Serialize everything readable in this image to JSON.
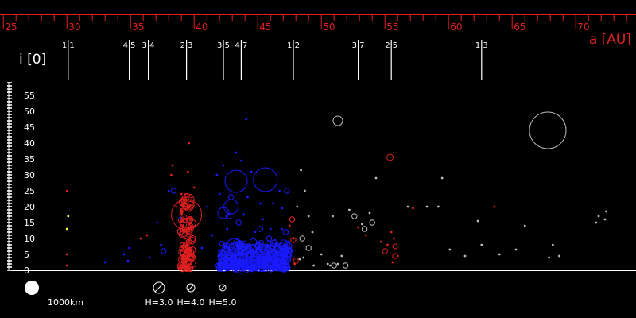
{
  "chart_data": {
    "type": "scatter",
    "xlabel": "a [AU]",
    "ylabel": "i [0]",
    "xlim": [
      24.8,
      74.8
    ],
    "ylim": [
      0,
      60
    ],
    "x_ticks": [
      25,
      30,
      35,
      40,
      45,
      50,
      55,
      60,
      65,
      70
    ],
    "y_ticks": [
      0,
      5,
      10,
      15,
      20,
      25,
      30,
      35,
      40,
      45,
      50,
      55
    ],
    "grid": false,
    "colors": {
      "background": "#000000",
      "x_axis": "#e02020",
      "resonant": "#e02020",
      "classical": "#1a1aff",
      "scattered": "#bbbbbb",
      "minor": "#ffff44",
      "axis_white": "#ffffff"
    },
    "resonances": [
      {
        "a": 30.1,
        "label": "1 1",
        "line": true
      },
      {
        "a": 34.9,
        "label": "4 5",
        "line": true
      },
      {
        "a": 36.4,
        "label": "3 4",
        "line": true
      },
      {
        "a": 39.4,
        "label": "2 3",
        "line": true
      },
      {
        "a": 42.3,
        "label": "3 5",
        "line": true
      },
      {
        "a": 43.7,
        "label": "4 7",
        "line": true
      },
      {
        "a": 47.8,
        "label": "1 2",
        "line": true
      },
      {
        "a": 52.9,
        "label": "3 7",
        "line": true
      },
      {
        "a": 55.5,
        "label": "2 5",
        "line": true
      },
      {
        "a": 62.6,
        "label": "1 3",
        "line": true
      }
    ],
    "legend": {
      "scale_label": "1000km",
      "h_labels": [
        "H=3.0",
        "H=4.0",
        "H=5.0"
      ]
    },
    "series": [
      {
        "type": "big_circles",
        "points": [
          {
            "a": 39.4,
            "i": 17.5,
            "r": 19,
            "c": "resonant"
          },
          {
            "a": 39.5,
            "i": 22.0,
            "r": 8,
            "c": "resonant"
          },
          {
            "a": 43.3,
            "i": 28.0,
            "r": 14,
            "c": "classical"
          },
          {
            "a": 45.6,
            "i": 28.5,
            "r": 15,
            "c": "classical"
          },
          {
            "a": 42.9,
            "i": 20.0,
            "r": 9,
            "c": "classical"
          },
          {
            "a": 42.3,
            "i": 18.0,
            "r": 7,
            "c": "classical"
          },
          {
            "a": 43.1,
            "i": 8.0,
            "r": 8,
            "c": "classical"
          },
          {
            "a": 43.8,
            "i": 2.0,
            "r": 12,
            "c": "classical"
          },
          {
            "a": 45.7,
            "i": 3.5,
            "r": 10,
            "c": "classical"
          },
          {
            "a": 44.9,
            "i": 4.5,
            "r": 8,
            "c": "classical"
          },
          {
            "a": 42.7,
            "i": 4.0,
            "r": 7,
            "c": "classical"
          },
          {
            "a": 67.8,
            "i": 44.0,
            "r": 23,
            "c": "scattered"
          },
          {
            "a": 51.3,
            "i": 47.0,
            "r": 6,
            "c": "scattered"
          },
          {
            "a": 55.4,
            "i": 35.5,
            "r": 4,
            "c": "resonant"
          },
          {
            "a": 55.8,
            "i": 7.5,
            "r": 3,
            "c": "resonant"
          }
        ]
      },
      {
        "type": "small_points",
        "points": [
          {
            "a": 30.0,
            "i": 25.0,
            "c": "resonant"
          },
          {
            "a": 30.0,
            "i": 5.0,
            "c": "resonant"
          },
          {
            "a": 30.0,
            "i": 1.5,
            "c": "resonant"
          },
          {
            "a": 30.1,
            "i": 17.0,
            "c": "minor"
          },
          {
            "a": 30.0,
            "i": 13.0,
            "c": "minor"
          },
          {
            "a": 33.0,
            "i": 2.5,
            "c": "classical"
          },
          {
            "a": 34.8,
            "i": 3.0,
            "c": "classical"
          },
          {
            "a": 34.5,
            "i": 5.0,
            "c": "classical"
          },
          {
            "a": 34.9,
            "i": 7.0,
            "c": "classical"
          },
          {
            "a": 35.8,
            "i": 10.0,
            "c": "resonant"
          },
          {
            "a": 36.3,
            "i": 11.0,
            "c": "resonant"
          },
          {
            "a": 36.5,
            "i": 4.0,
            "c": "classical"
          },
          {
            "a": 37.1,
            "i": 15.0,
            "c": "classical"
          },
          {
            "a": 37.4,
            "i": 8.0,
            "c": "classical"
          },
          {
            "a": 38.0,
            "i": 25.0,
            "c": "classical"
          },
          {
            "a": 38.3,
            "i": 33.0,
            "c": "resonant"
          },
          {
            "a": 38.2,
            "i": 30.0,
            "c": "resonant"
          },
          {
            "a": 38.6,
            "i": 20.0,
            "c": "resonant"
          },
          {
            "a": 38.9,
            "i": 16.5,
            "c": "classical"
          },
          {
            "a": 39.1,
            "i": 14.0,
            "c": "resonant"
          },
          {
            "a": 39.2,
            "i": 12.0,
            "c": "resonant"
          },
          {
            "a": 39.3,
            "i": 10.0,
            "c": "resonant"
          },
          {
            "a": 39.4,
            "i": 8.0,
            "c": "resonant"
          },
          {
            "a": 39.5,
            "i": 6.0,
            "c": "resonant"
          },
          {
            "a": 39.4,
            "i": 4.0,
            "c": "resonant"
          },
          {
            "a": 39.2,
            "i": 2.0,
            "c": "resonant"
          },
          {
            "a": 39.6,
            "i": 40.0,
            "c": "resonant"
          },
          {
            "a": 39.5,
            "i": 31.0,
            "c": "resonant"
          },
          {
            "a": 40.0,
            "i": 26.0,
            "c": "resonant"
          },
          {
            "a": 40.1,
            "i": 14.0,
            "c": "resonant"
          },
          {
            "a": 39.0,
            "i": 19.0,
            "c": "resonant"
          },
          {
            "a": 39.0,
            "i": 24.0,
            "c": "resonant"
          },
          {
            "a": 40.6,
            "i": 7.0,
            "c": "classical"
          },
          {
            "a": 41.0,
            "i": 20.0,
            "c": "classical"
          },
          {
            "a": 41.4,
            "i": 11.0,
            "c": "classical"
          },
          {
            "a": 41.8,
            "i": 30.0,
            "c": "classical"
          },
          {
            "a": 42.0,
            "i": 24.0,
            "c": "classical"
          },
          {
            "a": 42.3,
            "i": 33.0,
            "c": "classical"
          },
          {
            "a": 42.6,
            "i": 13.0,
            "c": "classical"
          },
          {
            "a": 43.3,
            "i": 37.0,
            "c": "classical"
          },
          {
            "a": 43.7,
            "i": 34.5,
            "c": "classical"
          },
          {
            "a": 43.9,
            "i": 17.5,
            "c": "classical"
          },
          {
            "a": 44.1,
            "i": 47.5,
            "c": "classical"
          },
          {
            "a": 44.5,
            "i": 31.0,
            "c": "classical"
          },
          {
            "a": 44.2,
            "i": 23.0,
            "c": "classical"
          },
          {
            "a": 44.8,
            "i": 12.0,
            "c": "classical"
          },
          {
            "a": 45.2,
            "i": 21.0,
            "c": "classical"
          },
          {
            "a": 45.4,
            "i": 16.0,
            "c": "classical"
          },
          {
            "a": 45.8,
            "i": 8.0,
            "c": "classical"
          },
          {
            "a": 46.0,
            "i": 13.0,
            "c": "classical"
          },
          {
            "a": 46.2,
            "i": 21.0,
            "c": "classical"
          },
          {
            "a": 46.7,
            "i": 25.0,
            "c": "classical"
          },
          {
            "a": 46.9,
            "i": 19.5,
            "c": "classical"
          },
          {
            "a": 46.9,
            "i": 13.0,
            "c": "classical"
          },
          {
            "a": 47.2,
            "i": 9.0,
            "c": "classical"
          },
          {
            "a": 47.5,
            "i": 14.0,
            "c": "resonant"
          },
          {
            "a": 47.7,
            "i": 6.0,
            "c": "classical"
          },
          {
            "a": 47.8,
            "i": 10.0,
            "c": "resonant"
          },
          {
            "a": 47.9,
            "i": 2.0,
            "c": "resonant"
          },
          {
            "a": 48.4,
            "i": 31.5,
            "c": "scattered"
          },
          {
            "a": 48.7,
            "i": 25.0,
            "c": "scattered"
          },
          {
            "a": 48.1,
            "i": 20.0,
            "c": "scattered"
          },
          {
            "a": 48.3,
            "i": 3.5,
            "c": "scattered"
          },
          {
            "a": 48.6,
            "i": 4.0,
            "c": "scattered"
          },
          {
            "a": 49.3,
            "i": 12.0,
            "c": "scattered"
          },
          {
            "a": 49.0,
            "i": 17.0,
            "c": "scattered"
          },
          {
            "a": 49.4,
            "i": 1.5,
            "c": "scattered"
          },
          {
            "a": 50.0,
            "i": 5.0,
            "c": "scattered"
          },
          {
            "a": 50.5,
            "i": 2.0,
            "c": "scattered"
          },
          {
            "a": 50.7,
            "i": 1.5,
            "c": "scattered"
          },
          {
            "a": 50.9,
            "i": 17.0,
            "c": "scattered"
          },
          {
            "a": 51.3,
            "i": 2.0,
            "c": "scattered"
          },
          {
            "a": 51.6,
            "i": 4.5,
            "c": "scattered"
          },
          {
            "a": 52.2,
            "i": 19.0,
            "c": "scattered"
          },
          {
            "a": 52.9,
            "i": 13.5,
            "c": "resonant"
          },
          {
            "a": 53.2,
            "i": 14.5,
            "c": "scattered"
          },
          {
            "a": 53.5,
            "i": 11.0,
            "c": "resonant"
          },
          {
            "a": 53.8,
            "i": 18.0,
            "c": "scattered"
          },
          {
            "a": 54.3,
            "i": 29.0,
            "c": "scattered"
          },
          {
            "a": 54.7,
            "i": 9.0,
            "c": "resonant"
          },
          {
            "a": 55.2,
            "i": 8.0,
            "c": "resonant"
          },
          {
            "a": 55.5,
            "i": 12.0,
            "c": "resonant"
          },
          {
            "a": 55.7,
            "i": 10.0,
            "c": "resonant"
          },
          {
            "a": 55.6,
            "i": 2.5,
            "c": "resonant"
          },
          {
            "a": 56.0,
            "i": 4.5,
            "c": "resonant"
          },
          {
            "a": 56.8,
            "i": 20.0,
            "c": "scattered"
          },
          {
            "a": 57.2,
            "i": 19.5,
            "c": "resonant"
          },
          {
            "a": 58.3,
            "i": 20.0,
            "c": "scattered"
          },
          {
            "a": 59.2,
            "i": 20.0,
            "c": "scattered"
          },
          {
            "a": 59.5,
            "i": 29.0,
            "c": "scattered"
          },
          {
            "a": 60.1,
            "i": 6.5,
            "c": "scattered"
          },
          {
            "a": 61.3,
            "i": 4.5,
            "c": "scattered"
          },
          {
            "a": 62.3,
            "i": 15.5,
            "c": "scattered"
          },
          {
            "a": 62.6,
            "i": 8.0,
            "c": "scattered"
          },
          {
            "a": 63.6,
            "i": 20.0,
            "c": "resonant"
          },
          {
            "a": 64.0,
            "i": 5.0,
            "c": "scattered"
          },
          {
            "a": 65.3,
            "i": 6.5,
            "c": "scattered"
          },
          {
            "a": 66.0,
            "i": 14.0,
            "c": "scattered"
          },
          {
            "a": 67.9,
            "i": 4.0,
            "c": "scattered"
          },
          {
            "a": 68.2,
            "i": 8.0,
            "c": "scattered"
          },
          {
            "a": 68.7,
            "i": 4.5,
            "c": "scattered"
          },
          {
            "a": 71.6,
            "i": 15.0,
            "c": "scattered"
          },
          {
            "a": 71.8,
            "i": 17.0,
            "c": "scattered"
          },
          {
            "a": 72.4,
            "i": 18.5,
            "c": "scattered"
          },
          {
            "a": 72.3,
            "i": 16.0,
            "c": "scattered"
          }
        ]
      },
      {
        "type": "small_circles",
        "points": [
          {
            "a": 38.4,
            "i": 25.0,
            "c": "classical"
          },
          {
            "a": 37.6,
            "i": 6.0,
            "c": "classical"
          },
          {
            "a": 42.9,
            "i": 23.0,
            "c": "classical"
          },
          {
            "a": 42.7,
            "i": 17.0,
            "c": "classical"
          },
          {
            "a": 43.5,
            "i": 15.0,
            "c": "classical"
          },
          {
            "a": 44.2,
            "i": 7.0,
            "c": "classical"
          },
          {
            "a": 45.2,
            "i": 13.0,
            "c": "classical"
          },
          {
            "a": 45.9,
            "i": 10.0,
            "c": "classical"
          },
          {
            "a": 46.3,
            "i": 6.0,
            "c": "classical"
          },
          {
            "a": 46.7,
            "i": 4.0,
            "c": "classical"
          },
          {
            "a": 47.2,
            "i": 12.0,
            "c": "classical"
          },
          {
            "a": 47.3,
            "i": 25.0,
            "c": "classical"
          },
          {
            "a": 41.9,
            "i": 1.5,
            "c": "classical"
          },
          {
            "a": 44.6,
            "i": 1.0,
            "c": "classical"
          },
          {
            "a": 47.7,
            "i": 16.0,
            "c": "resonant"
          },
          {
            "a": 47.8,
            "i": 9.5,
            "c": "resonant"
          },
          {
            "a": 48.0,
            "i": 3.0,
            "c": "resonant"
          },
          {
            "a": 39.3,
            "i": 3.5,
            "c": "resonant"
          },
          {
            "a": 39.6,
            "i": 9.0,
            "c": "resonant"
          },
          {
            "a": 38.9,
            "i": 1.0,
            "c": "resonant"
          },
          {
            "a": 49.0,
            "i": 7.0,
            "c": "scattered"
          },
          {
            "a": 48.5,
            "i": 10.0,
            "c": "scattered"
          },
          {
            "a": 51.0,
            "i": 1.5,
            "c": "scattered"
          },
          {
            "a": 51.9,
            "i": 1.5,
            "c": "scattered"
          },
          {
            "a": 52.6,
            "i": 17.0,
            "c": "scattered"
          },
          {
            "a": 53.4,
            "i": 13.0,
            "c": "scattered"
          },
          {
            "a": 54.0,
            "i": 15.0,
            "c": "scattered"
          },
          {
            "a": 55.0,
            "i": 6.0,
            "c": "resonant"
          },
          {
            "a": 55.8,
            "i": 4.5,
            "c": "resonant"
          }
        ]
      },
      {
        "type": "dense_cluster",
        "color": "classical",
        "a_range": [
          42.0,
          47.5
        ],
        "i_range": [
          0.5,
          9.0
        ],
        "count": 420
      },
      {
        "type": "dense_cluster",
        "color": "resonant",
        "a_range": [
          38.9,
          39.9
        ],
        "i_range": [
          0.5,
          24.0
        ],
        "count": 110
      }
    ]
  }
}
